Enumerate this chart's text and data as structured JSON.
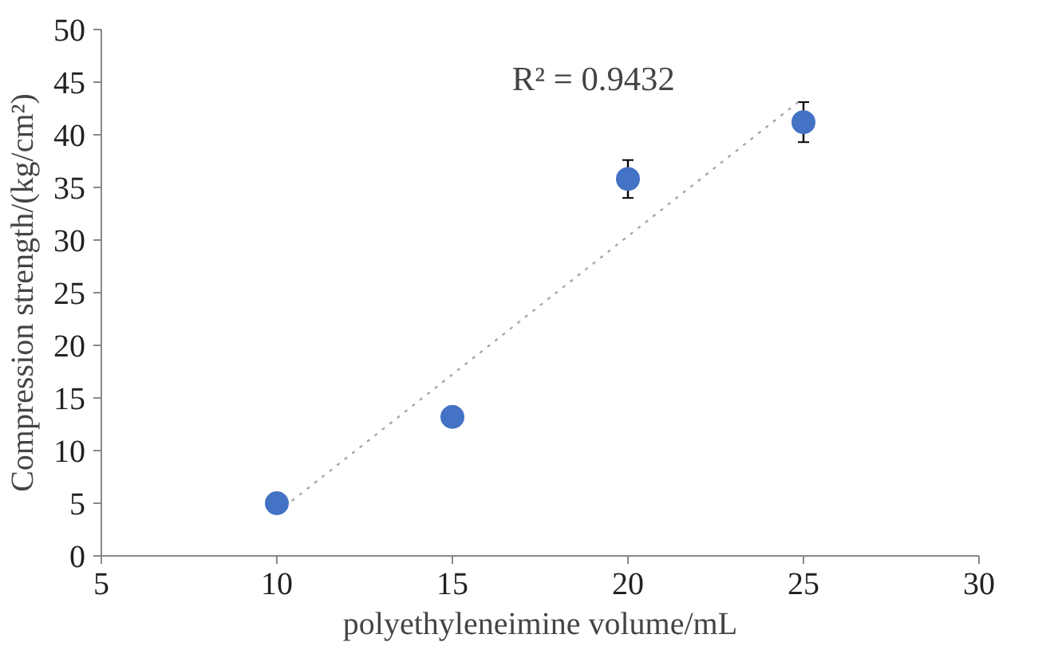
{
  "chart_data": {
    "type": "scatter",
    "xlabel": "polyethyleneimine volume/mL",
    "ylabel": "Compression strength/(kg/cm²)",
    "xlim": [
      5,
      30
    ],
    "xticks": [
      5,
      10,
      15,
      20,
      25,
      30
    ],
    "ylim": [
      0,
      50
    ],
    "yticks": [
      0,
      5,
      10,
      15,
      20,
      25,
      30,
      35,
      40,
      45,
      50
    ],
    "grid": false,
    "annotations": [
      "R² = 0.9432"
    ],
    "series": [
      {
        "type": "line",
        "color": "#a6a6a6",
        "x": [
          10,
          25
        ],
        "values": [
          4.1,
          43.5
        ],
        "line_style": "dotted",
        "marker": "none"
      },
      {
        "color": "#4472c4",
        "x": [
          10,
          15,
          20,
          25
        ],
        "values": [
          5.0,
          13.2,
          35.8,
          41.2
        ],
        "errors": [
          null,
          null,
          1.8,
          1.9
        ],
        "marker": "circle"
      }
    ]
  }
}
